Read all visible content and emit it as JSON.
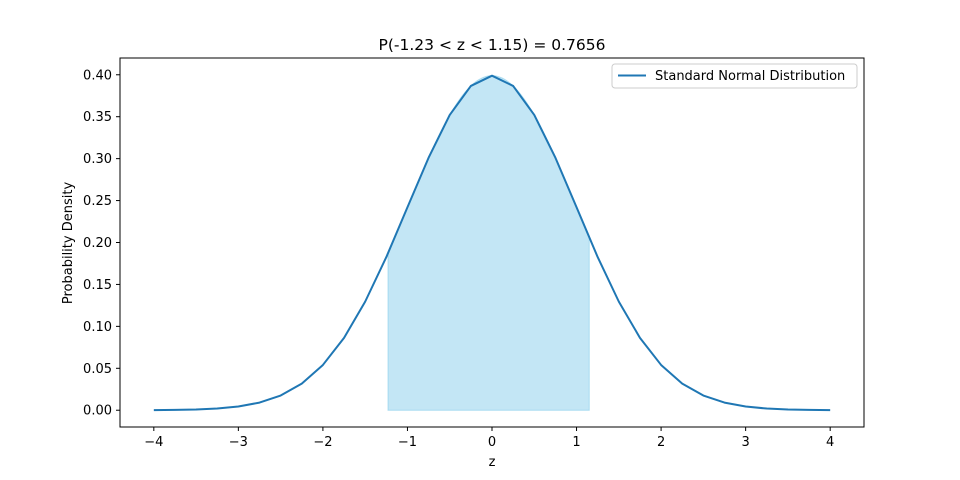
{
  "chart_data": {
    "type": "line",
    "title": "P(-1.23 < z < 1.15) = 0.7656",
    "xlabel": "z",
    "ylabel": "Probability Density",
    "xlim": [
      -4.4,
      4.4
    ],
    "ylim": [
      -0.02,
      0.42
    ],
    "xticks": [
      -4,
      -3,
      -2,
      -1,
      0,
      1,
      2,
      3,
      4
    ],
    "xtick_labels": [
      "−4",
      "−3",
      "−2",
      "−1",
      "0",
      "1",
      "2",
      "3",
      "4"
    ],
    "yticks": [
      0.0,
      0.05,
      0.1,
      0.15,
      0.2,
      0.25,
      0.3,
      0.35,
      0.4
    ],
    "ytick_labels": [
      "0.00",
      "0.05",
      "0.10",
      "0.15",
      "0.20",
      "0.25",
      "0.30",
      "0.35",
      "0.40"
    ],
    "grid": false,
    "legend_position": "top-right",
    "series": [
      {
        "name": "Standard Normal Distribution",
        "color": "#1f77b4",
        "x": [
          -4.0,
          -3.75,
          -3.5,
          -3.25,
          -3.0,
          -2.75,
          -2.5,
          -2.25,
          -2.0,
          -1.75,
          -1.5,
          -1.25,
          -1.0,
          -0.75,
          -0.5,
          -0.25,
          0.0,
          0.25,
          0.5,
          0.75,
          1.0,
          1.25,
          1.5,
          1.75,
          2.0,
          2.25,
          2.5,
          2.75,
          3.0,
          3.25,
          3.5,
          3.75,
          4.0
        ],
        "y": [
          0.0001,
          0.0004,
          0.0009,
          0.002,
          0.0044,
          0.0091,
          0.0175,
          0.0317,
          0.054,
          0.0863,
          0.1295,
          0.1826,
          0.242,
          0.3011,
          0.3521,
          0.3867,
          0.3989,
          0.3867,
          0.3521,
          0.3011,
          0.242,
          0.1826,
          0.1295,
          0.0863,
          0.054,
          0.0317,
          0.0175,
          0.0091,
          0.0044,
          0.002,
          0.0009,
          0.0004,
          0.0001
        ]
      }
    ],
    "shaded_region": {
      "x_from": -1.23,
      "x_to": 1.15,
      "color": "#87ceeb",
      "opacity": 0.5
    }
  }
}
